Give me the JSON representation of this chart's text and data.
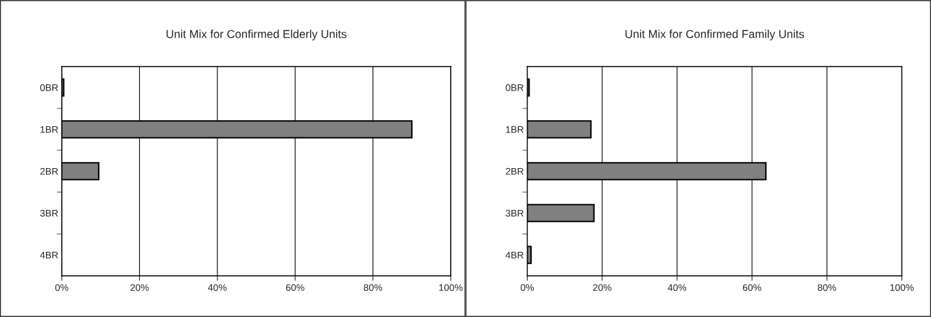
{
  "chart_data": [
    {
      "type": "bar",
      "orientation": "horizontal",
      "title": "Unit Mix for Confirmed Elderly Units",
      "categories": [
        "0BR",
        "1BR",
        "2BR",
        "3BR",
        "4BR"
      ],
      "values": [
        0.5,
        90,
        9.5,
        0,
        0
      ],
      "color": "#808080",
      "xlim": [
        0,
        100
      ],
      "xticks": [
        {
          "value": 0,
          "label": "0%"
        },
        {
          "value": 20,
          "label": "20%"
        },
        {
          "value": 40,
          "label": "40%"
        },
        {
          "value": 60,
          "label": "60%"
        },
        {
          "value": 80,
          "label": "80%"
        },
        {
          "value": 100,
          "label": "100%"
        }
      ],
      "grid": "x",
      "legend": false
    },
    {
      "type": "bar",
      "orientation": "horizontal",
      "title": "Unit Mix for Confirmed Family Units",
      "categories": [
        "0BR",
        "1BR",
        "2BR",
        "3BR",
        "4BR"
      ],
      "values": [
        0.5,
        17,
        63.7,
        17.8,
        1.0
      ],
      "color": "#808080",
      "xlim": [
        0,
        100
      ],
      "xticks": [
        {
          "value": 0,
          "label": "0%"
        },
        {
          "value": 20,
          "label": "20%"
        },
        {
          "value": 40,
          "label": "40%"
        },
        {
          "value": 60,
          "label": "60%"
        },
        {
          "value": 80,
          "label": "80%"
        },
        {
          "value": 100,
          "label": "100%"
        }
      ],
      "grid": "x",
      "legend": false
    }
  ]
}
